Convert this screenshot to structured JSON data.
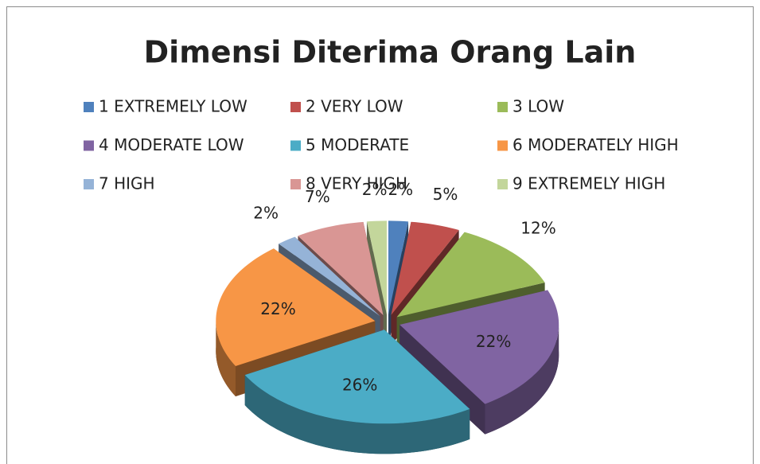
{
  "chart_data": {
    "type": "pie3d",
    "title": "Dimensi Diterima Orang Lain",
    "categories": [
      "1 EXTREMELY LOW",
      "2 VERY LOW",
      "3 LOW",
      "4 MODERATE LOW",
      "5 MODERATE",
      "6 MODERATELY HIGH",
      "7 HIGH",
      "8 VERY HIGH",
      "9 EXTREMELY HIGH"
    ],
    "values": [
      2,
      5,
      12,
      22,
      26,
      22,
      2,
      7,
      2
    ],
    "value_labels": [
      "2%",
      "5%",
      "12%",
      "22%",
      "26%",
      "22%",
      "2%",
      "7%",
      "2%"
    ],
    "colors": [
      "#4f81bd",
      "#c0504d",
      "#9bbb59",
      "#8064a2",
      "#4bacc6",
      "#f79646",
      "#95b3d7",
      "#d99694",
      "#c3d69b"
    ],
    "legend": "top"
  }
}
